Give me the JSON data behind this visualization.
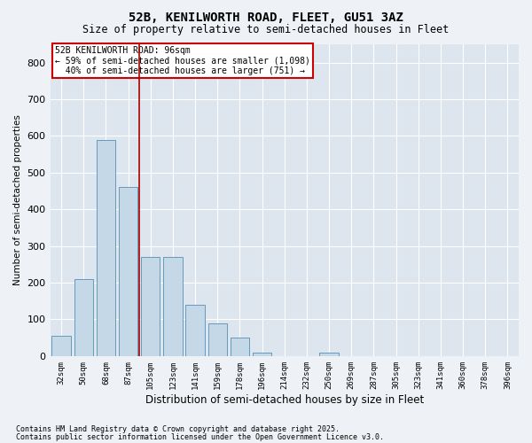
{
  "title1": "52B, KENILWORTH ROAD, FLEET, GU51 3AZ",
  "title2": "Size of property relative to semi-detached houses in Fleet",
  "xlabel": "Distribution of semi-detached houses by size in Fleet",
  "ylabel": "Number of semi-detached properties",
  "categories": [
    "32sqm",
    "50sqm",
    "68sqm",
    "87sqm",
    "105sqm",
    "123sqm",
    "141sqm",
    "159sqm",
    "178sqm",
    "196sqm",
    "214sqm",
    "232sqm",
    "250sqm",
    "269sqm",
    "287sqm",
    "305sqm",
    "323sqm",
    "341sqm",
    "360sqm",
    "378sqm",
    "396sqm"
  ],
  "values": [
    55,
    210,
    590,
    460,
    270,
    270,
    140,
    90,
    50,
    10,
    0,
    0,
    10,
    0,
    0,
    0,
    0,
    0,
    0,
    0,
    0
  ],
  "bar_color": "#c5d8e8",
  "bar_edge_color": "#6699bb",
  "subject_line_color": "#aa0000",
  "annotation_text": "52B KENILWORTH ROAD: 96sqm\n← 59% of semi-detached houses are smaller (1,098)\n  40% of semi-detached houses are larger (751) →",
  "annotation_box_color": "#cc0000",
  "background_color": "#eef2f6",
  "plot_bg_color": "#dde6ef",
  "ylim": [
    0,
    850
  ],
  "yticks": [
    0,
    100,
    200,
    300,
    400,
    500,
    600,
    700,
    800
  ],
  "footnote1": "Contains HM Land Registry data © Crown copyright and database right 2025.",
  "footnote2": "Contains public sector information licensed under the Open Government Licence v3.0."
}
